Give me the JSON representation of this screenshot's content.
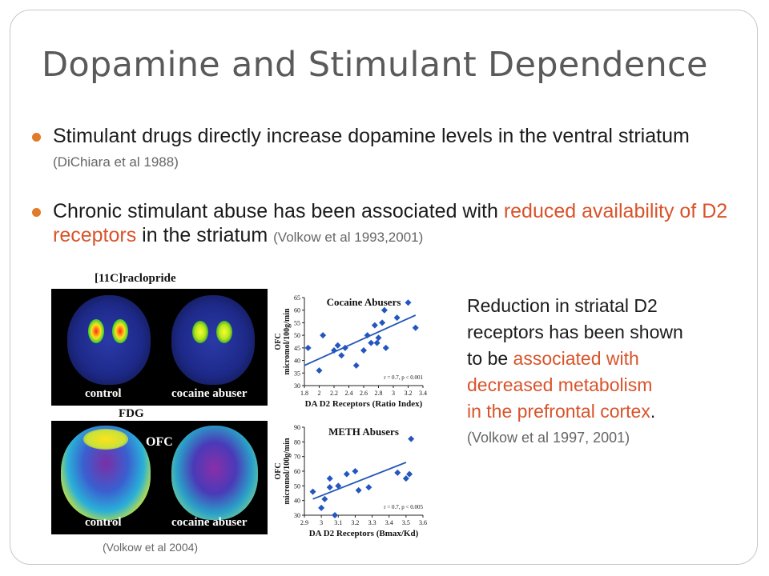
{
  "slide": {
    "title": "Dopamine and Stimulant Dependence",
    "bullets": [
      {
        "text": "Stimulant drugs directly increase dopamine levels in the ventral striatum",
        "ref": "(DiChiara et al 1988)"
      },
      {
        "text_before": "Chronic stimulant abuse has been associated with",
        "highlight": "reduced availability of D2 receptors",
        "text_after": "in the striatum",
        "ref": "(Volkow et al 1993,2001)"
      }
    ],
    "caption": {
      "line1": "Reduction in striatal D2",
      "line2": "receptors has been shown",
      "line3": "to be",
      "hl1": "associated with",
      "hl2": "decreased metabolism",
      "hl3": "in the prefrontal cortex",
      "period": ".",
      "ref": "(Volkow et al 1997, 2001)"
    },
    "figure_ref": "(Volkow et al 2004)",
    "accent_color": "#e07b2a",
    "highlight_color": "#d9532a"
  },
  "scans": {
    "top_title": "[11C]raclopride",
    "bottom_title": "FDG",
    "label_control": "control",
    "label_abuser": "cocaine abuser",
    "ofc_label": "OFC"
  },
  "chart_data": [
    {
      "type": "scatter",
      "title": "Cocaine Abusers",
      "xlabel": "DA D2 Receptors (Ratio Index)",
      "ylabel_line1": "OFC",
      "ylabel_line2": "micromol/100g/min",
      "xlim": [
        1.8,
        3.4
      ],
      "ylim": [
        30,
        65
      ],
      "x_ticks": [
        "1.8",
        "2",
        "2.2",
        "2.4",
        "2.6",
        "2.8",
        "3",
        "3.2",
        "3.4"
      ],
      "y_ticks": [
        "30",
        "35",
        "40",
        "45",
        "50",
        "55",
        "60",
        "65"
      ],
      "annotation": "r = 0.7, p < 0.001",
      "points": [
        [
          1.85,
          45
        ],
        [
          2.0,
          36
        ],
        [
          2.05,
          50
        ],
        [
          2.2,
          44
        ],
        [
          2.25,
          46
        ],
        [
          2.3,
          42
        ],
        [
          2.35,
          45
        ],
        [
          2.5,
          38
        ],
        [
          2.6,
          44
        ],
        [
          2.65,
          50
        ],
        [
          2.7,
          47
        ],
        [
          2.75,
          54
        ],
        [
          2.78,
          47
        ],
        [
          2.8,
          49
        ],
        [
          2.85,
          55
        ],
        [
          2.88,
          60
        ],
        [
          2.9,
          45
        ],
        [
          3.05,
          57
        ],
        [
          3.2,
          63
        ],
        [
          3.3,
          53
        ]
      ],
      "fit": [
        [
          1.8,
          38
        ],
        [
          3.3,
          58
        ]
      ]
    },
    {
      "type": "scatter",
      "title": "METH Abusers",
      "xlabel": "DA D2 Receptors (Bmax/Kd)",
      "ylabel_line1": "OFC",
      "ylabel_line2": "micromol/100g/min",
      "xlim": [
        2.9,
        3.6
      ],
      "ylim": [
        30,
        90
      ],
      "x_ticks": [
        "2.9",
        "3",
        "3.1",
        "3.2",
        "3.3",
        "3.4",
        "3.5",
        "3.6"
      ],
      "y_ticks": [
        "30",
        "40",
        "50",
        "60",
        "70",
        "80",
        "90"
      ],
      "annotation": "r = 0.7, p < 0.005",
      "points": [
        [
          2.95,
          46
        ],
        [
          3.0,
          35
        ],
        [
          3.02,
          41
        ],
        [
          3.05,
          49
        ],
        [
          3.05,
          55
        ],
        [
          3.08,
          30
        ],
        [
          3.1,
          50
        ],
        [
          3.15,
          58
        ],
        [
          3.2,
          60
        ],
        [
          3.22,
          47
        ],
        [
          3.28,
          49
        ],
        [
          3.45,
          59
        ],
        [
          3.5,
          55
        ],
        [
          3.52,
          58
        ],
        [
          3.53,
          82
        ]
      ],
      "fit": [
        [
          2.95,
          41
        ],
        [
          3.5,
          66
        ]
      ]
    }
  ]
}
